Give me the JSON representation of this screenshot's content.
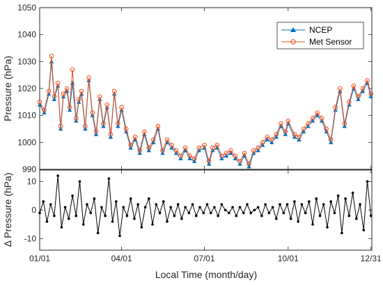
{
  "chart_data": [
    {
      "type": "line",
      "ylabel": "Pressure (hPa)",
      "ylim": [
        990,
        1050
      ],
      "yticks": [
        990,
        1000,
        1010,
        1020,
        1030,
        1040,
        1050
      ],
      "xlim_day": [
        0,
        365
      ],
      "xtick_days": [
        0,
        90,
        181,
        273,
        364
      ],
      "grid": false,
      "legend_position": "top-right",
      "series": [
        {
          "name": "NCEP",
          "color": "#0072bd",
          "marker": "triangle",
          "x_day": [
            0,
            5,
            10,
            13,
            16,
            20,
            23,
            26,
            30,
            33,
            36,
            40,
            43,
            46,
            50,
            54,
            58,
            62,
            66,
            70,
            74,
            78,
            82,
            86,
            90,
            95,
            100,
            105,
            110,
            115,
            120,
            125,
            130,
            135,
            140,
            145,
            150,
            155,
            160,
            165,
            170,
            175,
            181,
            186,
            190,
            195,
            200,
            205,
            210,
            215,
            220,
            225,
            230,
            235,
            240,
            245,
            250,
            255,
            260,
            265,
            270,
            273,
            280,
            285,
            290,
            295,
            300,
            305,
            310,
            315,
            320,
            325,
            330,
            335,
            340,
            345,
            350,
            355,
            360,
            364
          ],
          "values": [
            1014,
            1011,
            1018,
            1030,
            1016,
            1021,
            1005,
            1017,
            1019,
            1012,
            1022,
            1008,
            1015,
            1018,
            1005,
            1023,
            1010,
            1003,
            1016,
            1006,
            1013,
            1002,
            1018,
            1006,
            1012,
            1004,
            998,
            1001,
            996,
            1003,
            997,
            1000,
            1005,
            996,
            1000,
            998,
            996,
            994,
            997,
            994,
            993,
            997,
            998,
            992,
            997,
            998,
            994,
            995,
            996,
            994,
            992,
            995,
            991,
            996,
            997,
            999,
            1001,
            1000,
            1002,
            1006,
            1003,
            1007,
            1002,
            1001,
            1004,
            1006,
            1008,
            1010,
            1008,
            1004,
            1000,
            1012,
            1019,
            1006,
            1014,
            1020,
            1016,
            1019,
            1022,
            1017
          ]
        },
        {
          "name": "Met Sensor",
          "color": "#f04e1c",
          "marker": "circle",
          "x_day": [
            0,
            5,
            10,
            13,
            16,
            20,
            23,
            26,
            30,
            33,
            36,
            40,
            43,
            46,
            50,
            54,
            58,
            62,
            66,
            70,
            74,
            78,
            82,
            86,
            90,
            95,
            100,
            105,
            110,
            115,
            120,
            125,
            130,
            135,
            140,
            145,
            150,
            155,
            160,
            165,
            170,
            175,
            181,
            186,
            190,
            195,
            200,
            205,
            210,
            215,
            220,
            225,
            230,
            235,
            240,
            245,
            250,
            255,
            260,
            265,
            270,
            273,
            280,
            285,
            290,
            295,
            300,
            305,
            310,
            315,
            320,
            325,
            330,
            335,
            340,
            345,
            350,
            355,
            360,
            364
          ],
          "values": [
            1015,
            1012,
            1019,
            1032,
            1017,
            1022,
            1006,
            1018,
            1020,
            1013,
            1027,
            1009,
            1016,
            1019,
            1006,
            1024,
            1011,
            1004,
            1017,
            1007,
            1014,
            1003,
            1019,
            1007,
            1013,
            1005,
            999,
            1002,
            997,
            1004,
            998,
            1001,
            1006,
            997,
            1001,
            999,
            997,
            995,
            998,
            995,
            994,
            998,
            999,
            993,
            998,
            999,
            995,
            996,
            997,
            995,
            993,
            996,
            992,
            997,
            998,
            1000,
            1002,
            1001,
            1003,
            1007,
            1004,
            1008,
            1003,
            1002,
            1005,
            1007,
            1009,
            1011,
            1009,
            1005,
            1001,
            1013,
            1020,
            1007,
            1015,
            1021,
            1017,
            1020,
            1023,
            1018
          ]
        }
      ]
    },
    {
      "type": "line",
      "ylabel": "Δ Pressure (hPa)",
      "xlabel": "Local Time (month/day)",
      "ylim": [
        -14,
        14
      ],
      "yticks": [
        -10,
        0,
        10
      ],
      "xlim_day": [
        0,
        365
      ],
      "xtick_days": [
        0,
        90,
        181,
        273,
        364
      ],
      "xtick_labels": [
        "01/01",
        "04/01",
        "07/01",
        "10/01",
        "12/31"
      ],
      "grid": false,
      "series": [
        {
          "color": "#000000",
          "marker": "dot",
          "x_day": [
            0,
            4,
            8,
            12,
            16,
            20,
            24,
            28,
            32,
            36,
            40,
            44,
            48,
            52,
            56,
            60,
            64,
            68,
            72,
            76,
            80,
            84,
            88,
            92,
            96,
            100,
            104,
            108,
            112,
            116,
            120,
            124,
            128,
            132,
            136,
            140,
            144,
            148,
            152,
            156,
            160,
            164,
            168,
            172,
            176,
            180,
            184,
            188,
            192,
            196,
            200,
            204,
            208,
            212,
            216,
            220,
            224,
            228,
            232,
            236,
            240,
            244,
            248,
            252,
            256,
            260,
            264,
            268,
            272,
            276,
            280,
            284,
            288,
            292,
            296,
            300,
            304,
            308,
            312,
            316,
            320,
            324,
            328,
            332,
            336,
            340,
            344,
            348,
            352,
            356,
            360,
            364
          ],
          "values": [
            -1,
            3,
            -4,
            2,
            -2,
            12,
            -6,
            1,
            -3,
            5,
            -2,
            10,
            -5,
            2,
            -1,
            4,
            -8,
            1,
            -2,
            11,
            -4,
            3,
            -9,
            1,
            -2,
            4,
            -3,
            2,
            -6,
            1,
            4,
            -5,
            2,
            -1,
            3,
            -4,
            1,
            -2,
            2,
            -3,
            1,
            -1,
            2,
            -2,
            1,
            -1,
            2,
            -1,
            1,
            -2,
            2,
            0,
            -1,
            1,
            -2,
            1,
            -1,
            2,
            -1,
            0,
            1,
            -2,
            2,
            -1,
            1,
            -3,
            2,
            -1,
            2,
            -3,
            3,
            -4,
            2,
            -1,
            3,
            -5,
            4,
            -2,
            2,
            -6,
            3,
            -1,
            5,
            -8,
            4,
            -2,
            6,
            -3,
            2,
            -7,
            10,
            -2
          ]
        }
      ]
    }
  ]
}
